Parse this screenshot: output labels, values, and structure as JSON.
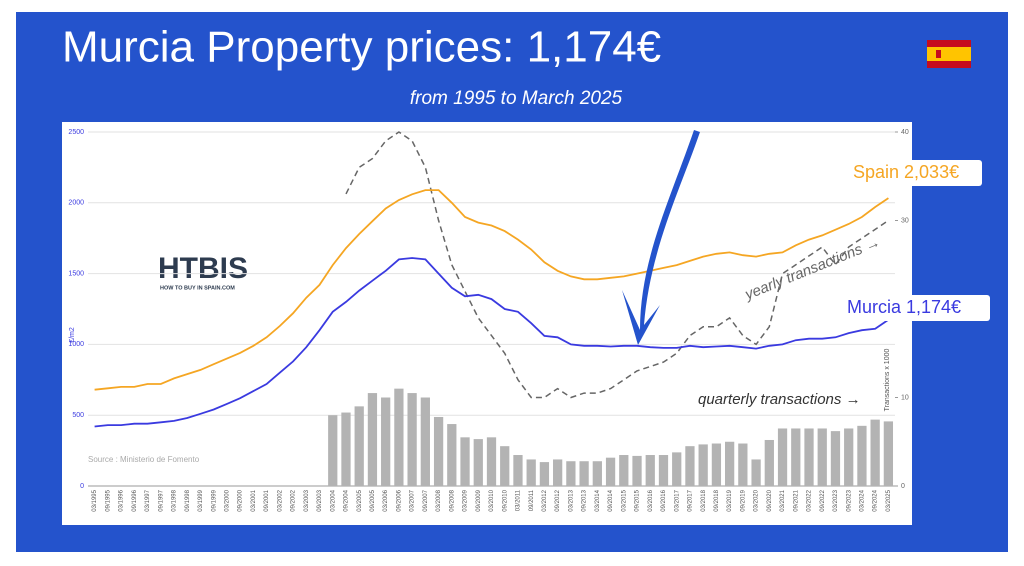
{
  "chart_data": {
    "type": "combo",
    "title": "Murcia Property prices: 1,174€",
    "subtitle": "from 1995 to March 2025",
    "source": "Source : Ministerio de Fomento",
    "logo": "HTBIS",
    "logo_tagline": "HOW TO BUY IN SPAIN.COM",
    "ylabel": "€/m2",
    "y2label": "Transactions x 1000",
    "categories": [
      "03/1995",
      "09/1995",
      "03/1996",
      "09/1996",
      "03/1997",
      "09/1997",
      "03/1998",
      "09/1998",
      "03/1999",
      "09/1999",
      "03/2000",
      "09/2000",
      "03/2001",
      "09/2001",
      "03/2002",
      "09/2002",
      "03/2003",
      "09/2003",
      "03/2004",
      "09/2004",
      "03/2005",
      "09/2005",
      "03/2006",
      "09/2006",
      "03/2007",
      "09/2007",
      "03/2008",
      "09/2008",
      "03/2009",
      "09/2009",
      "03/2010",
      "09/2010",
      "03/2011",
      "09/2011",
      "03/2012",
      "09/2012",
      "03/2013",
      "09/2013",
      "03/2014",
      "09/2014",
      "03/2015",
      "09/2015",
      "03/2016",
      "09/2016",
      "03/2017",
      "09/2017",
      "03/2018",
      "09/2018",
      "03/2019",
      "09/2019",
      "03/2020",
      "09/2020",
      "03/2021",
      "09/2021",
      "03/2022",
      "09/2022",
      "03/2023",
      "09/2023",
      "03/2024",
      "09/2024",
      "03/2025"
    ],
    "ylim": [
      0,
      2500
    ],
    "yticks": [
      0,
      500,
      1000,
      1500,
      2000,
      2500
    ],
    "y2lim": [
      0,
      40
    ],
    "y2ticks": [
      0,
      10,
      20,
      30,
      40
    ],
    "grid": true,
    "series": [
      {
        "name": "quarterly transactions →",
        "type": "bar",
        "axis": "y2",
        "color": "#b3b3b3",
        "values": [
          null,
          null,
          null,
          null,
          null,
          null,
          null,
          null,
          null,
          null,
          null,
          null,
          null,
          null,
          null,
          null,
          null,
          null,
          8,
          8.3,
          9,
          10.5,
          10,
          11,
          10.5,
          10,
          7.8,
          7,
          5.5,
          5.3,
          5.5,
          4.5,
          3.5,
          3,
          2.7,
          3,
          2.8,
          2.8,
          2.8,
          3.2,
          3.5,
          3.4,
          3.5,
          3.5,
          3.8,
          4.5,
          4.7,
          4.8,
          5,
          4.8,
          3,
          5.2,
          6.5,
          6.5,
          6.5,
          6.5,
          6.2,
          6.5,
          6.8,
          7.5,
          7.3
        ]
      },
      {
        "name": "yearly transactions →",
        "type": "line",
        "axis": "y2",
        "color": "#666666",
        "dashed": true,
        "values": [
          null,
          null,
          null,
          null,
          null,
          null,
          null,
          null,
          null,
          null,
          null,
          null,
          null,
          null,
          null,
          null,
          null,
          null,
          null,
          33,
          36,
          37,
          39,
          40,
          39,
          36,
          30,
          25,
          22,
          19,
          17,
          15,
          12,
          10,
          10,
          11,
          10,
          10.5,
          10.5,
          11,
          12,
          13,
          13.5,
          14,
          15,
          17,
          18,
          18,
          19,
          17,
          16,
          18,
          24,
          25,
          26,
          27,
          25,
          27,
          28,
          29,
          30
        ]
      },
      {
        "name": "Spain 2,033€",
        "type": "line",
        "axis": "y",
        "color": "#f5a623",
        "values": [
          680,
          690,
          700,
          700,
          720,
          720,
          760,
          790,
          820,
          860,
          900,
          940,
          990,
          1050,
          1130,
          1220,
          1330,
          1420,
          1560,
          1680,
          1780,
          1870,
          1960,
          2020,
          2060,
          2090,
          2090,
          2000,
          1900,
          1860,
          1840,
          1800,
          1740,
          1670,
          1580,
          1520,
          1480,
          1460,
          1460,
          1470,
          1480,
          1500,
          1520,
          1540,
          1560,
          1590,
          1620,
          1640,
          1650,
          1630,
          1620,
          1640,
          1650,
          1700,
          1740,
          1770,
          1810,
          1850,
          1900,
          1970,
          2033
        ]
      },
      {
        "name": "Murcia 1,174€",
        "type": "line",
        "axis": "y",
        "color": "#3a3ae0",
        "values": [
          420,
          430,
          430,
          440,
          440,
          450,
          460,
          480,
          510,
          540,
          580,
          620,
          670,
          720,
          800,
          880,
          980,
          1100,
          1230,
          1300,
          1380,
          1450,
          1520,
          1600,
          1610,
          1600,
          1500,
          1400,
          1340,
          1350,
          1320,
          1250,
          1230,
          1150,
          1060,
          1050,
          1000,
          990,
          990,
          985,
          990,
          990,
          980,
          975,
          975,
          990,
          980,
          985,
          990,
          980,
          970,
          990,
          1000,
          1030,
          1040,
          1040,
          1050,
          1080,
          1100,
          1110,
          1174
        ]
      }
    ]
  }
}
